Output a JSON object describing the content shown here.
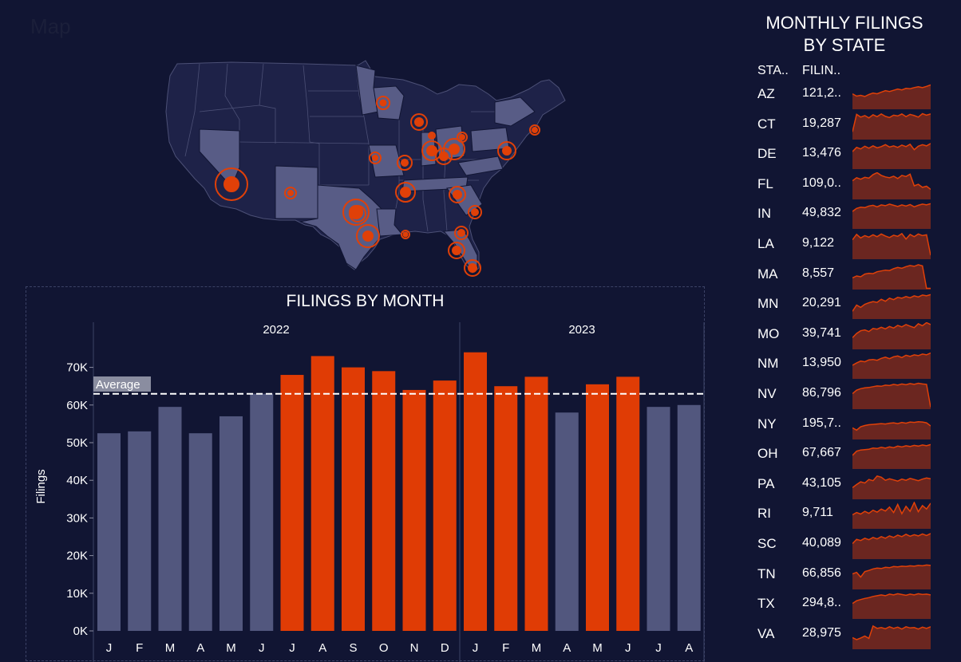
{
  "map": {
    "title": "Map",
    "highlight_color": "#e04008",
    "base_state_color": "#1e2248",
    "highlight_state_color": "#585c86",
    "markers": [
      "AZ",
      "CT",
      "DE",
      "FL",
      "IN",
      "LA",
      "MA",
      "MN",
      "MO",
      "NM",
      "NV",
      "NY",
      "OH",
      "PA",
      "RI",
      "SC",
      "TN",
      "TX",
      "VA"
    ]
  },
  "bar_chart": {
    "title": "FILINGS BY MONTH",
    "reference_line_label": "Average"
  },
  "chart_data": {
    "type": "bar",
    "title": "FILINGS BY MONTH",
    "xlabel": "",
    "ylabel": "Filings",
    "ylim": [
      0,
      75000
    ],
    "yticks": [
      "0K",
      "10K",
      "20K",
      "30K",
      "40K",
      "50K",
      "60K",
      "70K"
    ],
    "ytick_values": [
      0,
      10000,
      20000,
      30000,
      40000,
      50000,
      60000,
      70000
    ],
    "groups": [
      {
        "label": "2022",
        "categories": [
          "J",
          "F",
          "M",
          "A",
          "M",
          "J",
          "J",
          "A",
          "S",
          "O",
          "N",
          "D"
        ],
        "values": [
          52500,
          53000,
          59500,
          52500,
          57000,
          63000,
          68000,
          73000,
          70000,
          69000,
          64000,
          66500
        ]
      },
      {
        "label": "2023",
        "categories": [
          "J",
          "F",
          "M",
          "A",
          "M",
          "J",
          "J",
          "A"
        ],
        "values": [
          74000,
          65000,
          67500,
          58000,
          65500,
          67500,
          59500,
          60000
        ]
      }
    ],
    "average": 63200,
    "colors": {
      "below_average": "#52577e",
      "above_average": "#e03c05"
    },
    "grid": false
  },
  "side": {
    "title_line1": "MONTHLY FILINGS",
    "title_line2": "BY STATE",
    "col_state": "STA..",
    "col_filings": "FILIN..",
    "rows": [
      {
        "state": "AZ",
        "filings": "121,2..",
        "trend": [
          4,
          3.4,
          3.6,
          3.3,
          3.8,
          4.2,
          4.0,
          4.4,
          4.8,
          4.6,
          4.9,
          5.2,
          5.0,
          5.4,
          5.3,
          5.6,
          5.8,
          5.6,
          5.9,
          6.3
        ]
      },
      {
        "state": "CT",
        "filings": "19,287",
        "trend": [
          2,
          6.5,
          5.8,
          6.2,
          5.6,
          6.4,
          5.9,
          6.6,
          6.0,
          5.7,
          6.3,
          6.1,
          6.6,
          5.9,
          6.5,
          6.2,
          5.8,
          6.7,
          6.3,
          6.6
        ]
      },
      {
        "state": "DE",
        "filings": "13,476",
        "trend": [
          4.5,
          5.6,
          5.2,
          5.9,
          5.4,
          6.0,
          5.5,
          5.8,
          6.3,
          5.7,
          6.0,
          5.6,
          6.2,
          5.8,
          6.4,
          5.0,
          5.9,
          6.3,
          6.0,
          6.6
        ]
      },
      {
        "state": "FL",
        "filings": "109,0..",
        "trend": [
          4.8,
          5.6,
          5.2,
          5.7,
          5.5,
          6.4,
          6.9,
          6.2,
          5.8,
          5.6,
          6.0,
          5.4,
          6.2,
          5.9,
          6.5,
          3.5,
          3.9,
          3.1,
          3.4,
          2.6
        ]
      },
      {
        "state": "IN",
        "filings": "49,832",
        "trend": [
          4.5,
          5.3,
          5.6,
          5.5,
          5.9,
          6.1,
          5.7,
          6.2,
          6.0,
          6.4,
          6.1,
          5.8,
          6.2,
          5.9,
          6.3,
          5.7,
          6.1,
          6.4,
          6.2,
          6.5
        ]
      },
      {
        "state": "LA",
        "filings": "9,122",
        "trend": [
          5.0,
          6.4,
          5.5,
          6.1,
          5.7,
          6.3,
          5.8,
          6.5,
          6.0,
          5.6,
          6.2,
          5.9,
          6.6,
          5.2,
          6.4,
          5.8,
          6.5,
          6.1,
          6.3,
          1.0
        ]
      },
      {
        "state": "MA",
        "filings": "8,557",
        "trend": [
          3.0,
          3.5,
          3.3,
          4.0,
          4.2,
          4.1,
          4.6,
          4.8,
          5.0,
          4.9,
          5.4,
          5.7,
          5.5,
          5.9,
          6.2,
          6.0,
          6.4,
          6.1,
          0.3,
          0.3
        ]
      },
      {
        "state": "MN",
        "filings": "20,291",
        "trend": [
          2.0,
          3.6,
          3.0,
          3.8,
          4.2,
          4.5,
          4.3,
          5.1,
          4.6,
          5.4,
          5.0,
          5.6,
          5.4,
          5.8,
          5.5,
          6.0,
          5.7,
          6.2,
          6.0,
          6.3
        ]
      },
      {
        "state": "MO",
        "filings": "39,741",
        "trend": [
          3.0,
          4.1,
          4.8,
          5.0,
          4.6,
          5.4,
          5.2,
          5.7,
          5.3,
          5.9,
          5.5,
          6.2,
          5.8,
          6.4,
          6.0,
          5.6,
          6.6,
          6.1,
          6.9,
          6.4
        ]
      },
      {
        "state": "NM",
        "filings": "13,950",
        "trend": [
          3.5,
          4.1,
          4.6,
          4.4,
          4.9,
          5.0,
          4.8,
          5.3,
          5.6,
          5.2,
          5.7,
          5.9,
          5.5,
          6.1,
          5.8,
          6.2,
          6.0,
          6.4,
          6.2,
          6.7
        ]
      },
      {
        "state": "NV",
        "filings": "86,796",
        "trend": [
          4.0,
          4.9,
          5.3,
          5.5,
          5.6,
          5.8,
          6.0,
          5.9,
          6.2,
          6.1,
          6.4,
          6.2,
          6.5,
          6.3,
          6.6,
          6.4,
          6.7,
          6.5,
          6.4,
          0.5
        ]
      },
      {
        "state": "NY",
        "filings": "195,7..",
        "trend": [
          3.0,
          2.4,
          3.3,
          3.6,
          3.8,
          3.9,
          4.0,
          4.1,
          4.0,
          4.2,
          4.3,
          4.1,
          4.4,
          4.2,
          4.5,
          4.4,
          4.6,
          4.5,
          4.3,
          3.5
        ]
      },
      {
        "state": "OH",
        "filings": "67,667",
        "trend": [
          3.5,
          4.6,
          4.9,
          5.0,
          5.1,
          5.4,
          5.3,
          5.6,
          5.4,
          5.7,
          5.5,
          5.9,
          5.7,
          6.0,
          5.8,
          6.1,
          5.9,
          6.2,
          6.0,
          6.3
        ]
      },
      {
        "state": "PA",
        "filings": "43,105",
        "trend": [
          3.0,
          3.8,
          4.5,
          4.2,
          5.1,
          4.8,
          6.0,
          5.7,
          4.9,
          5.3,
          5.0,
          4.7,
          5.2,
          4.9,
          5.4,
          5.1,
          4.8,
          5.2,
          5.5,
          5.3
        ]
      },
      {
        "state": "RI",
        "filings": "9,711",
        "trend": [
          3.6,
          4.2,
          3.8,
          4.5,
          4.0,
          4.8,
          4.3,
          5.1,
          4.6,
          5.6,
          4.2,
          6.3,
          3.9,
          5.8,
          4.5,
          6.8,
          4.4,
          6.0,
          5.1,
          6.6
        ]
      },
      {
        "state": "SC",
        "filings": "40,089",
        "trend": [
          4.0,
          5.1,
          4.8,
          5.4,
          5.0,
          5.6,
          5.2,
          5.8,
          5.4,
          6.0,
          5.6,
          6.2,
          5.8,
          6.4,
          5.9,
          6.3,
          6.0,
          6.5,
          6.1,
          6.6
        ]
      },
      {
        "state": "TN",
        "filings": "66,856",
        "trend": [
          4.0,
          4.4,
          3.2,
          4.6,
          4.9,
          5.3,
          5.5,
          5.4,
          5.7,
          5.6,
          5.9,
          5.8,
          6.0,
          5.9,
          6.1,
          6.0,
          6.2,
          6.1,
          6.3,
          6.2
        ]
      },
      {
        "state": "TX",
        "filings": "294,8..",
        "trend": [
          4.0,
          4.7,
          5.0,
          5.3,
          5.5,
          5.8,
          6.0,
          6.2,
          6.0,
          6.4,
          6.2,
          6.5,
          6.3,
          6.1,
          6.4,
          6.2,
          6.5,
          6.3,
          6.4,
          6.2
        ]
      },
      {
        "state": "VA",
        "filings": "28,975",
        "trend": [
          3.0,
          2.5,
          2.9,
          3.4,
          2.8,
          6.0,
          5.4,
          5.6,
          5.3,
          5.8,
          5.4,
          5.7,
          5.2,
          5.8,
          5.5,
          5.6,
          5.2,
          5.7,
          5.4,
          5.8
        ]
      }
    ]
  }
}
